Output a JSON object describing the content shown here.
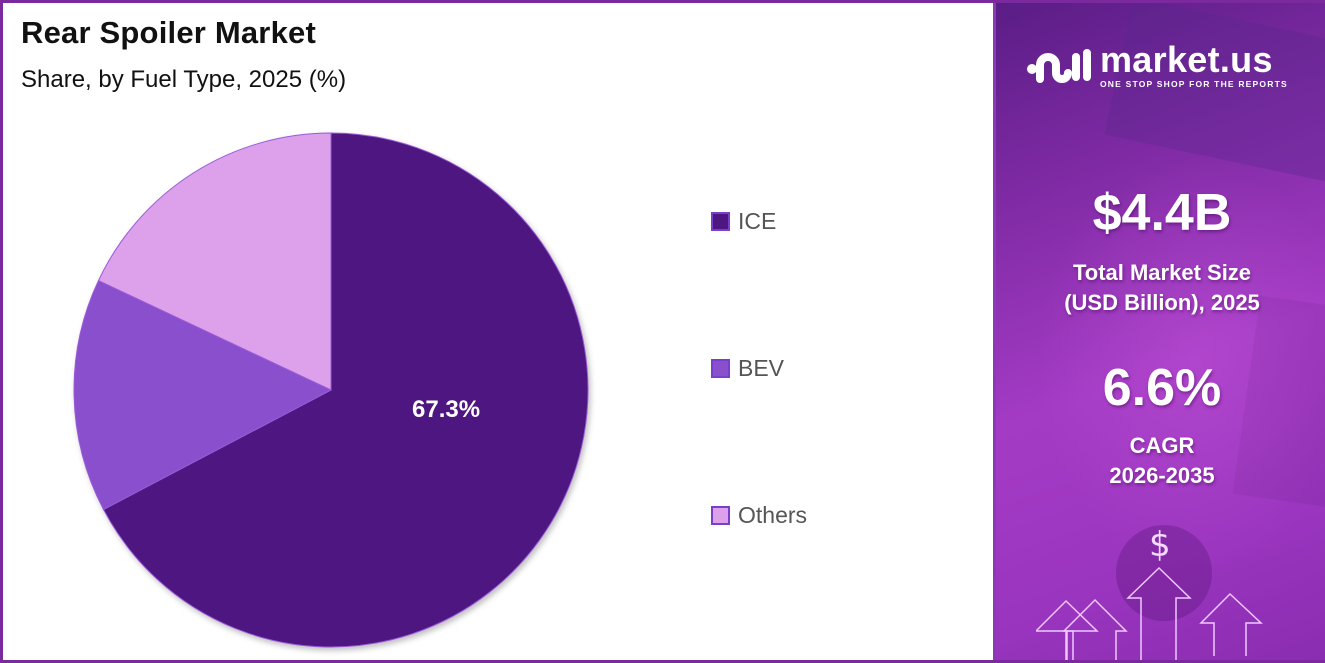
{
  "header": {
    "title": "Rear Spoiler Market",
    "subtitle": "Share, by Fuel Type, 2025 (%)"
  },
  "chart_data": {
    "type": "pie",
    "title": "Rear Spoiler Market",
    "subtitle": "Share, by Fuel Type, 2025 (%)",
    "categories": [
      "ICE",
      "BEV",
      "Others"
    ],
    "values": [
      67.3,
      14.7,
      18.0
    ],
    "colors": [
      "#4d1680",
      "#8a4fcc",
      "#dda0ea"
    ],
    "data_labels": [
      "67.3%",
      "",
      ""
    ],
    "start_angle": "12 o'clock, clockwise",
    "legend_position": "right"
  },
  "legend": {
    "items": [
      {
        "label": "ICE",
        "color": "#4d1680"
      },
      {
        "label": "BEV",
        "color": "#8a4fcc"
      },
      {
        "label": "Others",
        "color": "#dda0ea"
      }
    ]
  },
  "pie": {
    "label_ice": "67.3%"
  },
  "sidebar": {
    "brand": "market.us",
    "tagline": "ONE STOP SHOP FOR THE REPORTS",
    "market_size_value": "$4.4B",
    "market_size_label_1": "Total Market Size",
    "market_size_label_2": "(USD Billion), 2025",
    "cagr_value": "6.6%",
    "cagr_label_1": "CAGR",
    "cagr_label_2": "2026-2035",
    "dollar_symbol": "$",
    "accent_color": "#7b2a9e"
  }
}
